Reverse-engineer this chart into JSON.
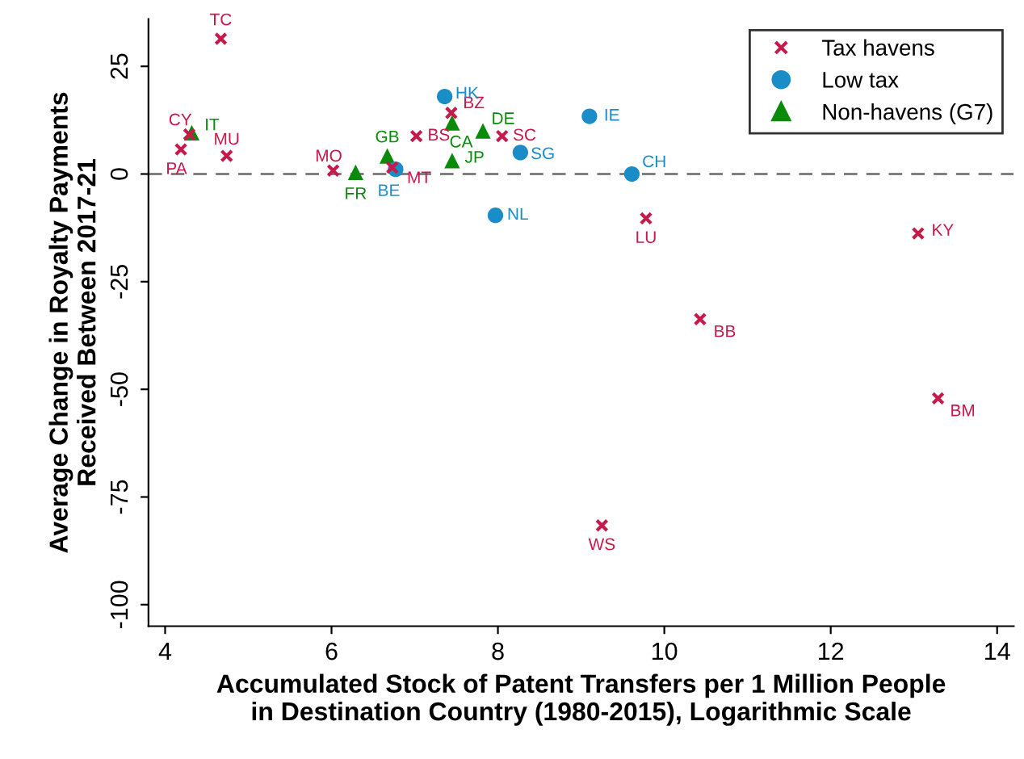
{
  "chart_data": {
    "type": "scatter",
    "xlabel": "Accumulated Stock of Patent Transfers per 1 Million People\nin Destination Country (1980-2015), Logarithmic Scale",
    "ylabel": "Average Change in Royalty Payments\nReceived Between 2017-21",
    "xlim": [
      3.8,
      14.2
    ],
    "ylim": [
      -105,
      36
    ],
    "xticks": [
      4,
      6,
      8,
      10,
      12,
      14
    ],
    "yticks": [
      -100,
      -75,
      -50,
      -25,
      0,
      25
    ],
    "grid": false,
    "legend": "top right",
    "ref_lines": [
      {
        "axis": "y",
        "value": 0,
        "color": "#808080",
        "line_style": "dashed"
      }
    ],
    "series": [
      {
        "name": "Tax havens",
        "color": "#c8194b",
        "marker": "cross",
        "x": [
          4.67,
          4.29,
          4.19,
          4.74,
          6.02,
          6.73,
          7.02,
          7.44,
          8.05,
          9.78,
          13.05,
          10.43,
          13.29,
          9.25
        ],
        "values": [
          31.4,
          9.2,
          5.7,
          4.2,
          0.8,
          1.5,
          8.8,
          14.2,
          8.8,
          -10.3,
          -13.8,
          -33.7,
          -52.1,
          -81.6
        ]
      },
      {
        "name": "Low tax",
        "color": "#1a8cc8",
        "marker": "circle",
        "x": [
          7.36,
          9.1,
          8.27,
          9.61,
          7.97,
          6.77
        ],
        "values": [
          18.0,
          13.4,
          5.0,
          0,
          -9.6,
          1.1
        ]
      },
      {
        "name": "Non-havens (G7)",
        "color": "#0a8a0a",
        "marker": "triangle",
        "x": [
          4.32,
          6.29,
          6.67,
          7.45,
          7.82,
          7.45
        ],
        "values": [
          9.6,
          0.4,
          4.2,
          11.9,
          10.0,
          3.1
        ]
      }
    ],
    "annotations": [
      {
        "text": "TC",
        "x": 4.67,
        "y": 31.4
      },
      {
        "text": "CY",
        "x": 4.29,
        "y": 9.2
      },
      {
        "text": "PA",
        "x": 4.19,
        "y": 5.7
      },
      {
        "text": "MU",
        "x": 4.74,
        "y": 4.2
      },
      {
        "text": "MO",
        "x": 6.02,
        "y": 0.8
      },
      {
        "text": "MT",
        "x": 6.73,
        "y": 1.5
      },
      {
        "text": "BS",
        "x": 7.02,
        "y": 8.8
      },
      {
        "text": "BZ",
        "x": 7.44,
        "y": 14.2
      },
      {
        "text": "SC",
        "x": 8.05,
        "y": 8.8
      },
      {
        "text": "LU",
        "x": 9.78,
        "y": -10.3
      },
      {
        "text": "KY",
        "x": 13.05,
        "y": -13.8
      },
      {
        "text": "BB",
        "x": 10.43,
        "y": -33.7
      },
      {
        "text": "BM",
        "x": 13.29,
        "y": -52.1
      },
      {
        "text": "WS",
        "x": 9.25,
        "y": -81.6
      },
      {
        "text": "HK",
        "x": 7.36,
        "y": 18.0
      },
      {
        "text": "IE",
        "x": 9.1,
        "y": 13.4
      },
      {
        "text": "SG",
        "x": 8.27,
        "y": 5.0
      },
      {
        "text": "CH",
        "x": 9.61,
        "y": 0
      },
      {
        "text": "NL",
        "x": 7.97,
        "y": -9.6
      },
      {
        "text": "BE",
        "x": 6.77,
        "y": 1.1
      },
      {
        "text": "IT",
        "x": 4.32,
        "y": 9.6
      },
      {
        "text": "FR",
        "x": 6.29,
        "y": 0.4
      },
      {
        "text": "GB",
        "x": 6.67,
        "y": 4.2
      },
      {
        "text": "CA",
        "x": 7.45,
        "y": 11.9
      },
      {
        "text": "DE",
        "x": 7.82,
        "y": 10.0
      },
      {
        "text": "JP",
        "x": 7.45,
        "y": 3.1
      }
    ]
  }
}
